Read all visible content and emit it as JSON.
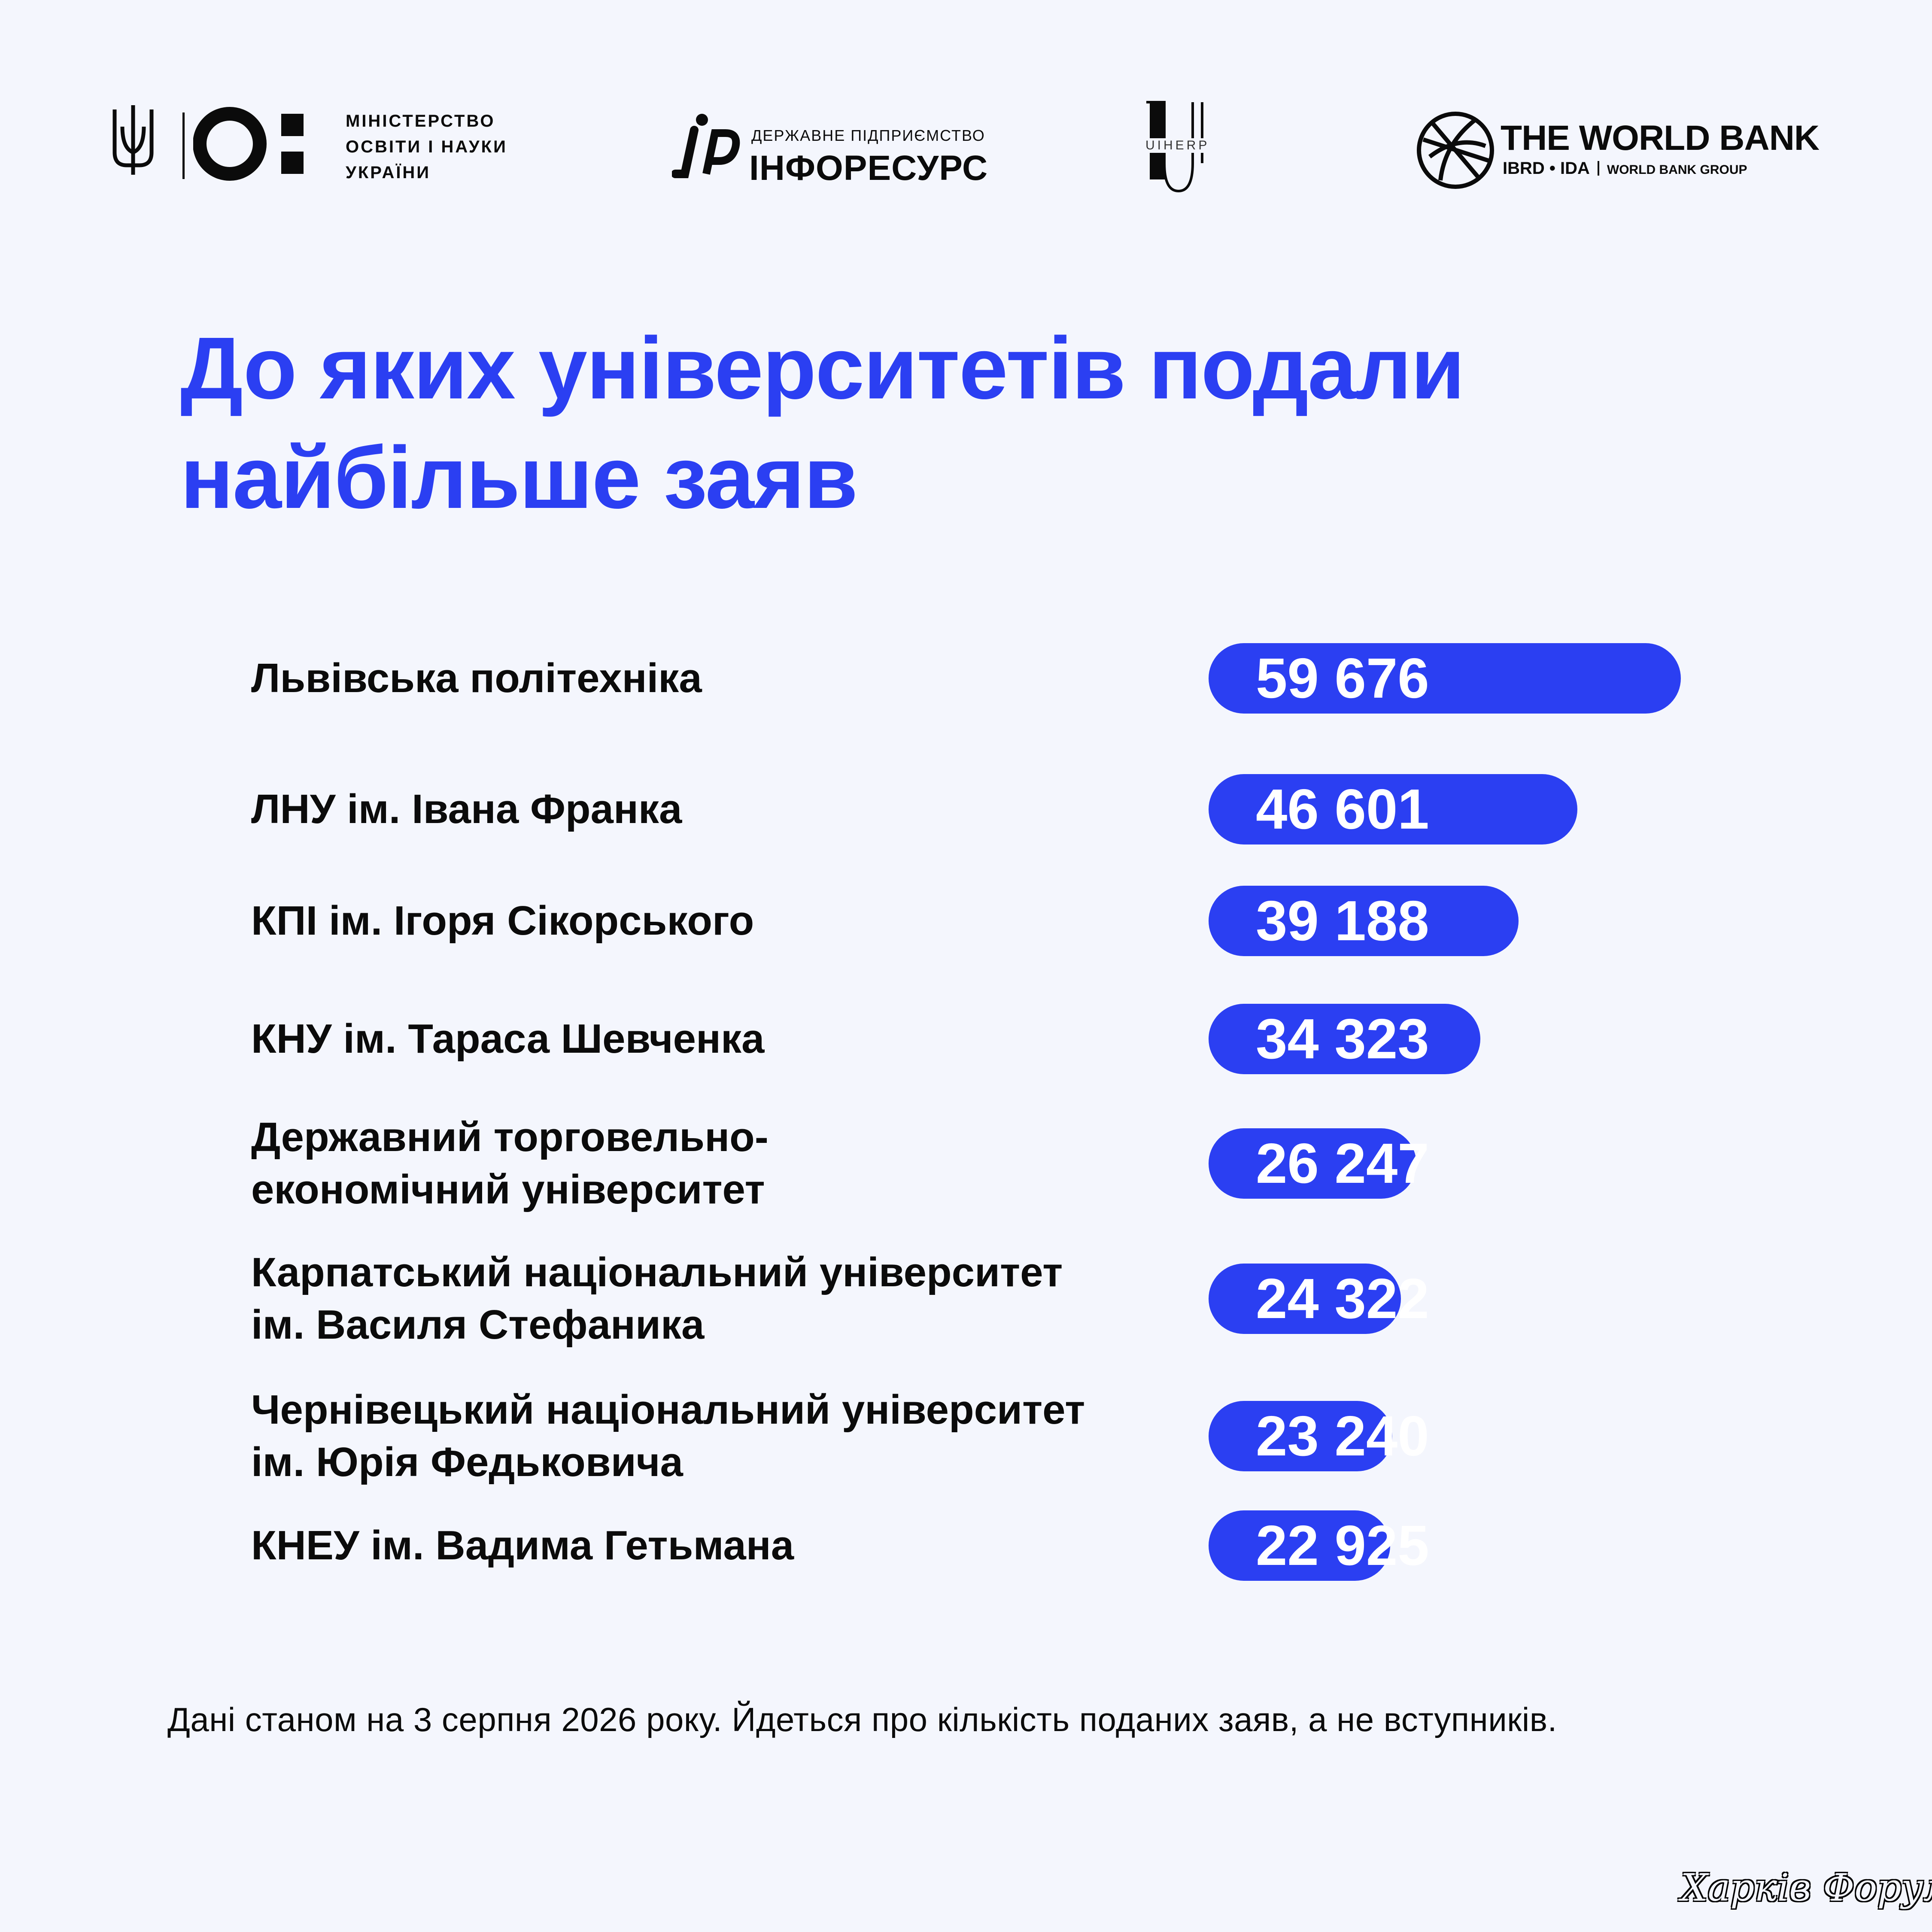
{
  "logos": {
    "ministry": {
      "line1": "МІНІСТЕРСТВО",
      "line2": "ОСВІТИ І НАУКИ",
      "line3": "УКРАЇНИ"
    },
    "inforesurs": {
      "top": "ДЕРЖАВНЕ ПІДПРИЄМСТВО",
      "name": "ІНФОРЕСУРС"
    },
    "uiherp": "UIHERP",
    "world_bank": {
      "name": "THE WORLD BANK",
      "sub": "IBRD • IDA",
      "group": "WORLD BANK GROUP"
    }
  },
  "title": {
    "line1": "До яких університетів подали",
    "line2": "найбільше заяв"
  },
  "chart_data": {
    "type": "bar",
    "orientation": "horizontal",
    "title": "До яких університетів подали найбільше заяв",
    "categories": [
      [
        "Львівська політехніка"
      ],
      [
        "ЛНУ ім. Івана Франка"
      ],
      [
        "КПІ ім. Ігоря Сікорського"
      ],
      [
        "КНУ ім. Тараса Шевченка"
      ],
      [
        "Державний торговельно-",
        "економічний університет"
      ],
      [
        "Карпатський національний університет",
        "ім. Василя Стефаника"
      ],
      [
        "Чернівецький національний університет",
        "ім. Юрія Федьковича"
      ],
      [
        "КНЕУ ім. Вадима Гетьмана"
      ]
    ],
    "values": [
      59676,
      46601,
      39188,
      34323,
      26247,
      24322,
      23240,
      22925
    ],
    "value_labels": [
      "59 676",
      "46 601",
      "39 188",
      "34 323",
      "26 247",
      "24 322",
      "23 240",
      "22 925"
    ],
    "bar_color": "#2b3ff2",
    "value_label_color": "#ffffff"
  },
  "footnote": "Дані станом на 3 серпня 2026 року. Йдеться про кількість поданих заяв, а не вступників.",
  "watermark": "Харків Форум",
  "colors": {
    "background": "#f4f6fd",
    "accent": "#2b3ff2",
    "text": "#0b0b0b"
  }
}
